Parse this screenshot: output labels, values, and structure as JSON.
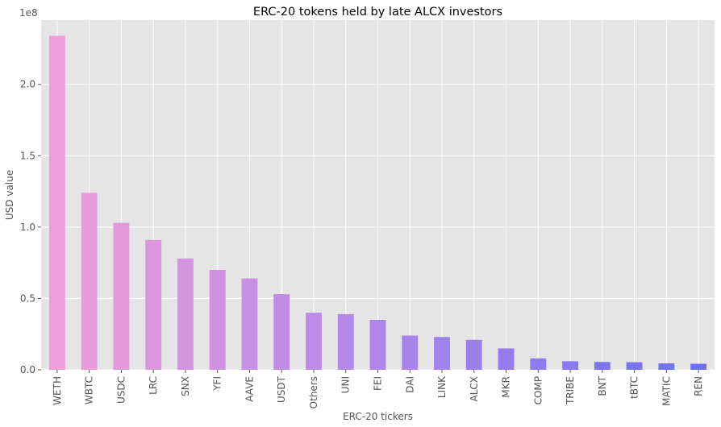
{
  "chart_data": {
    "type": "bar",
    "title": "ERC-20 tokens held by late ALCX investors",
    "xlabel": "ERC-20 tickers",
    "ylabel": "USD value",
    "scale_label": "1e8",
    "categories": [
      "WETH",
      "WBTC",
      "USDC",
      "LRC",
      "SNX",
      "YFI",
      "AAVE",
      "USDT",
      "Others",
      "UNI",
      "FEI",
      "DAI",
      "LINK",
      "ALCX",
      "MKR",
      "COMP",
      "TRIBE",
      "BNT",
      "tBTC",
      "MATIC",
      "REN"
    ],
    "values": [
      2.34,
      1.24,
      1.03,
      0.91,
      0.78,
      0.7,
      0.64,
      0.53,
      0.4,
      0.39,
      0.35,
      0.24,
      0.23,
      0.21,
      0.15,
      0.08,
      0.06,
      0.055,
      0.053,
      0.045,
      0.042
    ],
    "ylim": [
      0,
      2.45
    ],
    "yticks": [
      0.0,
      0.5,
      1.0,
      1.5,
      2.0
    ],
    "ytick_labels": [
      "0.0",
      "0.5",
      "1.0",
      "1.5",
      "2.0"
    ],
    "grid": true,
    "background": "#e5e5e5",
    "gradient_colors": [
      "#ee9ed8",
      "#6e6ef9"
    ]
  }
}
